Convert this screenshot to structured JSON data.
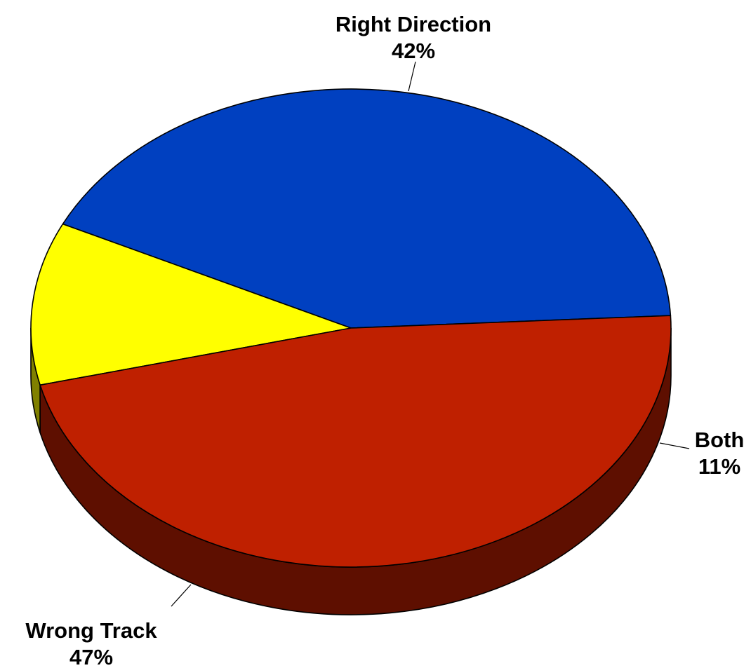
{
  "chart_data": {
    "type": "pie",
    "title": "",
    "slices": [
      {
        "label": "Right Direction",
        "value": 42,
        "value_label": "42%",
        "color": "#0040C0",
        "side_color": "#002a80"
      },
      {
        "label": "Both",
        "value": 11,
        "value_label": "11%",
        "color": "#FFFF00",
        "side_color": "#808000"
      },
      {
        "label": "Wrong Track",
        "value": 47,
        "value_label": "47%",
        "color": "#BF2000",
        "side_color": "#5E0F00"
      }
    ],
    "style": "3d-tilted",
    "legend": "none"
  }
}
